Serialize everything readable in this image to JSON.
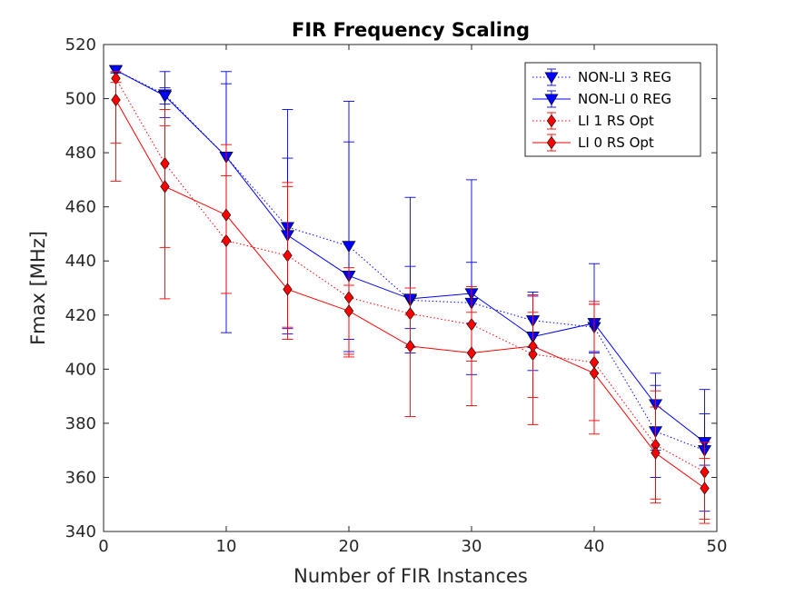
{
  "chart_data": {
    "type": "line",
    "title": "FIR Frequency Scaling",
    "xlabel": "Number of FIR Instances",
    "ylabel": "Fmax [MHz]",
    "xlim": [
      0,
      50
    ],
    "ylim": [
      340,
      520
    ],
    "xticks": [
      0,
      10,
      20,
      30,
      40,
      50
    ],
    "yticks": [
      340,
      360,
      380,
      400,
      420,
      440,
      460,
      480,
      500,
      520
    ],
    "grid": false,
    "error_bars": true,
    "legend_position": "top-right",
    "x": [
      1,
      5,
      10,
      15,
      20,
      25,
      30,
      35,
      40,
      45,
      49
    ],
    "series": [
      {
        "name": "NON-LI 3 REG",
        "color": "#0000ff",
        "line_style": "dotted",
        "marker": "triangle-down",
        "values": [
          510.5,
          501.5,
          478.5,
          452.5,
          445.5,
          425.5,
          424.5,
          418,
          415.5,
          377,
          370
        ],
        "upper": [
          511.5,
          510,
          510,
          496,
          499,
          463.5,
          470,
          428.5,
          424,
          394,
          392.5
        ],
        "lower": [
          509.5,
          493,
          447,
          415,
          411,
          406,
          398,
          408,
          406.5,
          360,
          347.5
        ]
      },
      {
        "name": "NON-LI 0 REG",
        "color": "#0000ff",
        "line_style": "solid",
        "marker": "triangle-down",
        "values": [
          510.5,
          501,
          478.5,
          449.5,
          434.5,
          426,
          428,
          412,
          417,
          387,
          373
        ],
        "upper": [
          511.5,
          504,
          505.5,
          478,
          484,
          438,
          439.5,
          427,
          439,
          398.5,
          383.5
        ],
        "lower": [
          509.5,
          498,
          413.5,
          413,
          406.5,
          415,
          417,
          399.5,
          406,
          370,
          364.5
        ]
      },
      {
        "name": "LI 1 RS Opt",
        "color": "#ff0000",
        "line_style": "dotted",
        "marker": "diamond",
        "values": [
          507.5,
          476,
          447.5,
          442,
          426.5,
          420.5,
          416.5,
          405.5,
          402.5,
          372,
          362
        ],
        "upper": [
          510,
          490,
          471.5,
          469,
          437.5,
          430,
          430.5,
          421,
          425,
          392,
          373
        ],
        "lower": [
          483.5,
          426,
          428,
          415.5,
          405.5,
          408,
          403,
          389.5,
          381,
          352,
          344.5
        ]
      },
      {
        "name": "LI 0 RS Opt",
        "color": "#ff0000",
        "line_style": "solid",
        "marker": "diamond",
        "values": [
          499.5,
          467.5,
          457,
          429.5,
          421.5,
          408.5,
          406,
          408.5,
          398.5,
          369,
          356
        ],
        "upper": [
          506,
          496,
          483,
          467.5,
          431,
          420,
          421,
          427.5,
          424,
          386,
          367
        ],
        "lower": [
          469.5,
          445,
          447,
          411,
          404.5,
          382.5,
          386.5,
          379.5,
          376,
          350.5,
          343
        ]
      }
    ]
  }
}
